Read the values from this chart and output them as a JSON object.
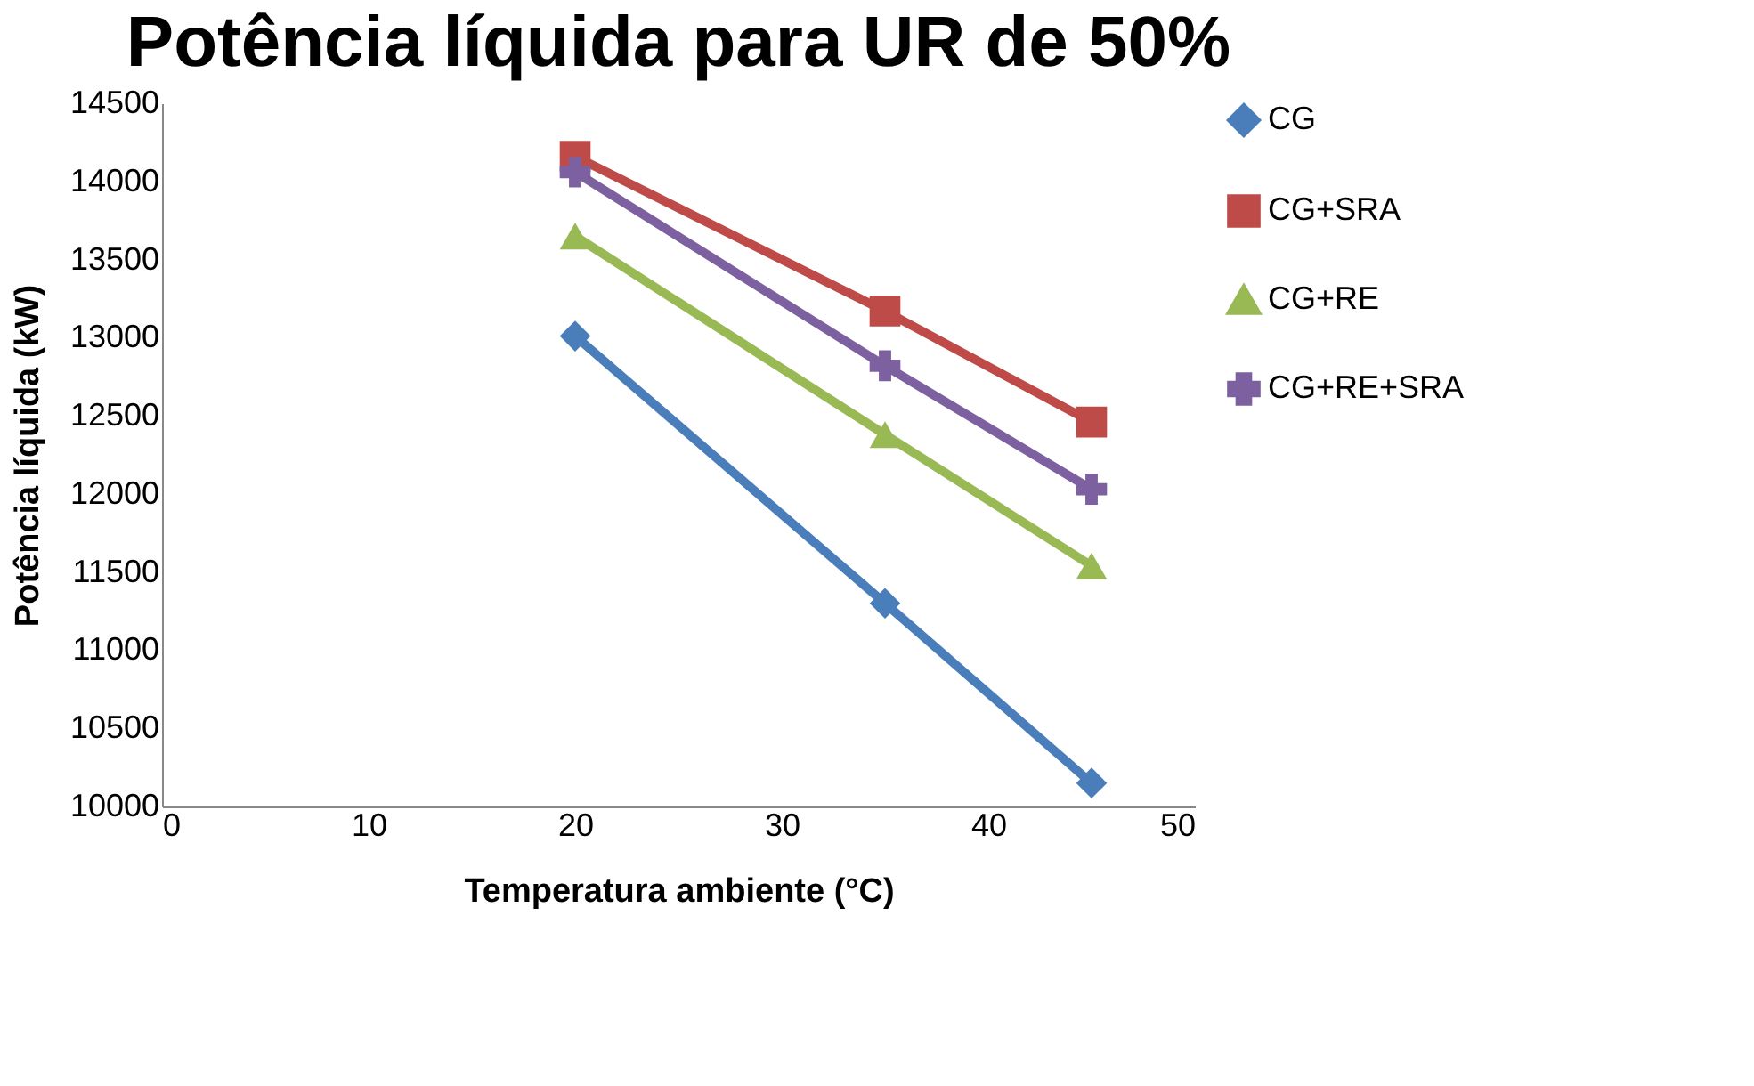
{
  "chart_data": {
    "type": "line",
    "title": "Potência líquida para UR de 50%",
    "xlabel": "Temperatura ambiente (°C)",
    "ylabel": "Potência líquida (kW)",
    "x": [
      20,
      35,
      45
    ],
    "series": [
      {
        "name": "CG",
        "color": "#4a7ebb",
        "marker": "diamond",
        "values": [
          13010,
          11300,
          10150
        ]
      },
      {
        "name": "CG+SRA",
        "color": "#be4b48",
        "marker": "square",
        "values": [
          14160,
          13170,
          12460
        ]
      },
      {
        "name": "CG+RE",
        "color": "#98b954",
        "marker": "triangle",
        "values": [
          13650,
          12380,
          11540
        ]
      },
      {
        "name": "CG+RE+SRA",
        "color": "#7d60a0",
        "marker": "cross",
        "values": [
          14060,
          12820,
          12030
        ]
      }
    ],
    "xlim": [
      0,
      50
    ],
    "xticks": [
      0,
      10,
      20,
      30,
      40,
      50
    ],
    "ylim": [
      10000,
      14500
    ],
    "yticks": [
      10000,
      10500,
      11000,
      11500,
      12000,
      12500,
      13000,
      13500,
      14000,
      14500
    ],
    "grid": false,
    "legend": "right"
  }
}
